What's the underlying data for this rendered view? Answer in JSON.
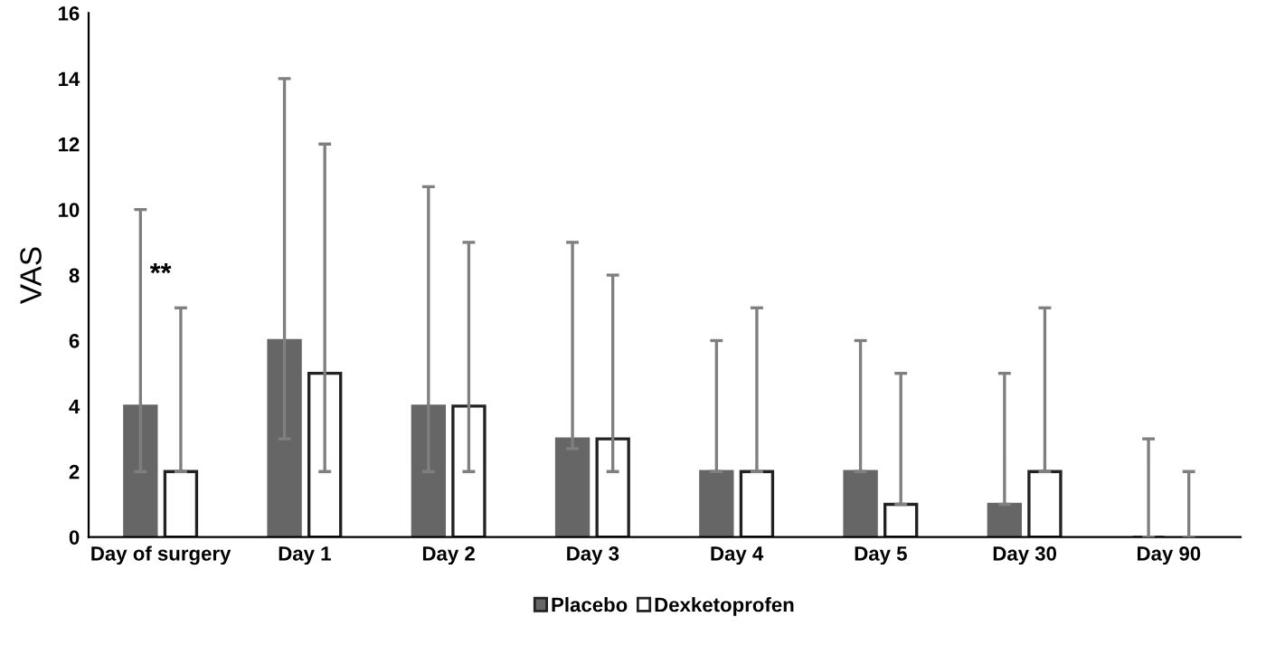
{
  "chart_data": {
    "type": "bar",
    "ylabel": "VAS",
    "categories": [
      "Day of surgery",
      "Day 1",
      "Day 2",
      "Day 3",
      "Day 4",
      "Day 5",
      "Day 30",
      "Day 90"
    ],
    "series": [
      {
        "name": "Placebo",
        "color": "#666666",
        "values": [
          4,
          6,
          4,
          3,
          2,
          2,
          1,
          0
        ],
        "errors": [
          [
            2,
            10
          ],
          [
            3,
            14
          ],
          [
            2,
            10.7
          ],
          [
            2.7,
            9
          ],
          [
            2,
            6
          ],
          [
            2,
            6
          ],
          [
            1,
            5
          ],
          [
            0,
            3
          ]
        ]
      },
      {
        "name": "Dexketoprofen",
        "color": "#ffffff",
        "values": [
          2,
          5,
          4,
          3,
          2,
          1,
          2,
          0
        ],
        "errors": [
          [
            2,
            7
          ],
          [
            2,
            12
          ],
          [
            2,
            9
          ],
          [
            2,
            8
          ],
          [
            2,
            7
          ],
          [
            1,
            5
          ],
          [
            2,
            7
          ],
          [
            0,
            2
          ]
        ]
      }
    ],
    "ylim": [
      0,
      16
    ],
    "yticks": [
      0,
      2,
      4,
      6,
      8,
      10,
      12,
      14,
      16
    ],
    "grid": false,
    "legend": "bottom",
    "annotations": [
      "**"
    ]
  }
}
